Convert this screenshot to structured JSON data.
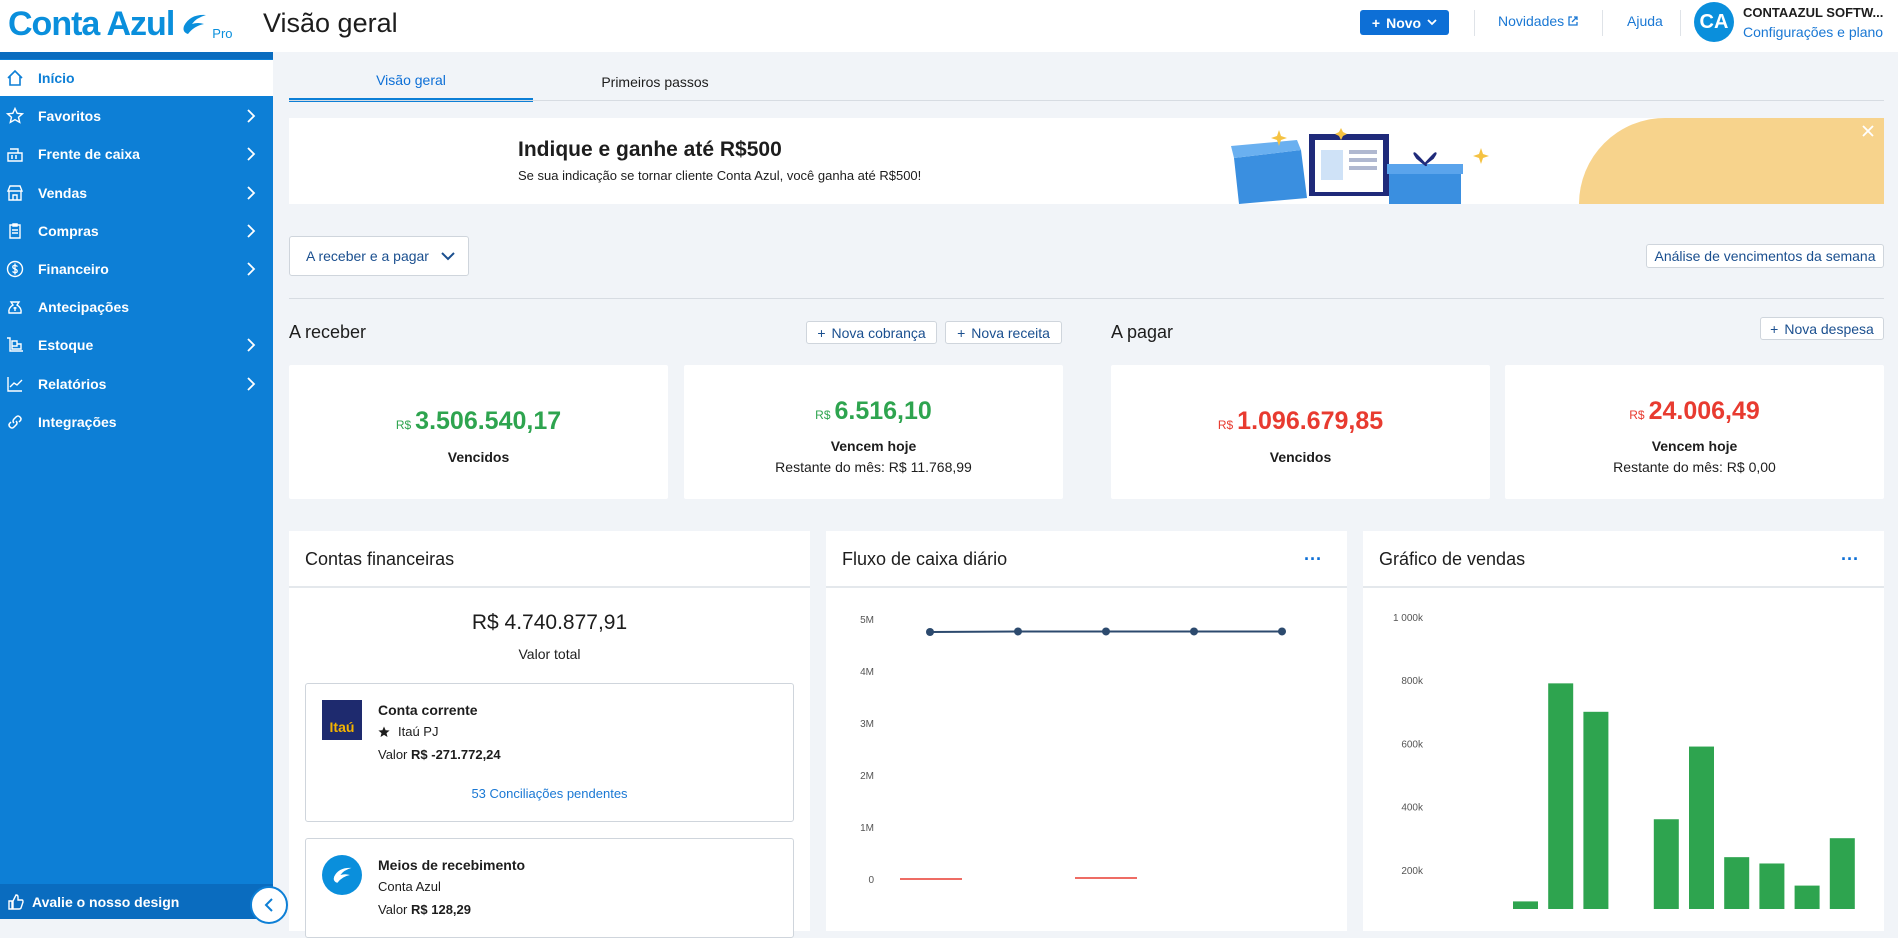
{
  "header": {
    "logo": "Conta Azul",
    "pro": "Pro",
    "title": "Visão geral",
    "novo_label": "Novo",
    "novidades": "Novidades",
    "ajuda": "Ajuda",
    "avatar": "CA",
    "company": "CONTAAZUL SOFTW...",
    "settings": "Configurações e plano"
  },
  "sidebar": {
    "items": [
      {
        "label": "Início",
        "icon": "home-icon",
        "active": true
      },
      {
        "label": "Favoritos",
        "icon": "star-icon"
      },
      {
        "label": "Frente de caixa",
        "icon": "cash-register-icon"
      },
      {
        "label": "Vendas",
        "icon": "store-icon"
      },
      {
        "label": "Compras",
        "icon": "clipboard-icon"
      },
      {
        "label": "Financeiro",
        "icon": "dollar-icon"
      },
      {
        "label": "Antecipações",
        "icon": "money-bag-icon"
      },
      {
        "label": "Estoque",
        "icon": "inventory-icon"
      },
      {
        "label": "Relatórios",
        "icon": "chart-line-icon"
      },
      {
        "label": "Integrações",
        "icon": "link-icon"
      }
    ],
    "footer": "Avalie o nosso design"
  },
  "tabs": [
    "Visão geral",
    "Primeiros passos"
  ],
  "banner": {
    "title": "Indique e ganhe até R$500",
    "subtitle": "Se sua indicação se tornar cliente Conta Azul, você ganha até R$500!"
  },
  "filter": {
    "label": "A receber e a pagar"
  },
  "analise_label": "Análise de vencimentos da semana",
  "receber": {
    "title": "A receber",
    "btn_cobranca": "Nova cobrança",
    "btn_receita": "Nova receita",
    "vencidos": {
      "currency": "R$",
      "value": "3.506.540,17",
      "caption": "Vencidos"
    },
    "hoje": {
      "currency": "R$",
      "value": "6.516,10",
      "caption": "Vencem hoje",
      "sub": "Restante do mês: R$ 11.768,99"
    }
  },
  "pagar": {
    "title": "A pagar",
    "btn_despesa": "Nova despesa",
    "vencidos": {
      "currency": "R$",
      "value": "1.096.679,85",
      "caption": "Vencidos"
    },
    "hoje": {
      "currency": "R$",
      "value": "24.006,49",
      "caption": "Vencem hoje",
      "sub": "Restante do mês: R$ 0,00"
    }
  },
  "contas": {
    "title": "Contas financeiras",
    "total": "R$ 4.740.877,91",
    "total_label": "Valor total",
    "accounts": [
      {
        "bank_logo": "Itaú",
        "name": "Conta corrente",
        "bank": "Itaú PJ",
        "valor_label": "Valor",
        "valor": "R$ -271.772,24",
        "pending": "53 Conciliações pendentes"
      },
      {
        "name": "Meios de recebimento",
        "bank": "Conta Azul",
        "valor_label": "Valor",
        "valor": "R$ 128,29"
      }
    ]
  },
  "colors": {
    "brand": "#0d7fd6",
    "green": "#2ea44f",
    "red": "#e83b30",
    "line": "#2c4a6e"
  },
  "chart_data": [
    {
      "type": "line",
      "title": "Fluxo de caixa diário",
      "y_ticks": [
        "5M",
        "4M",
        "3M",
        "2M",
        "1M",
        "0"
      ],
      "ylim": [
        0,
        5000000
      ],
      "series": [
        {
          "values": [
            4750000,
            4760000,
            4760000,
            4760000,
            4760000
          ]
        }
      ]
    },
    {
      "type": "bar",
      "title": "Gráfico de vendas",
      "y_ticks": [
        "1 000k",
        "800k",
        "600k",
        "400k",
        "200k"
      ],
      "ylim": [
        0,
        1000000
      ],
      "values": [
        100000,
        790000,
        700000,
        25000,
        360000,
        590000,
        240000,
        220000,
        150000,
        300000
      ]
    }
  ]
}
